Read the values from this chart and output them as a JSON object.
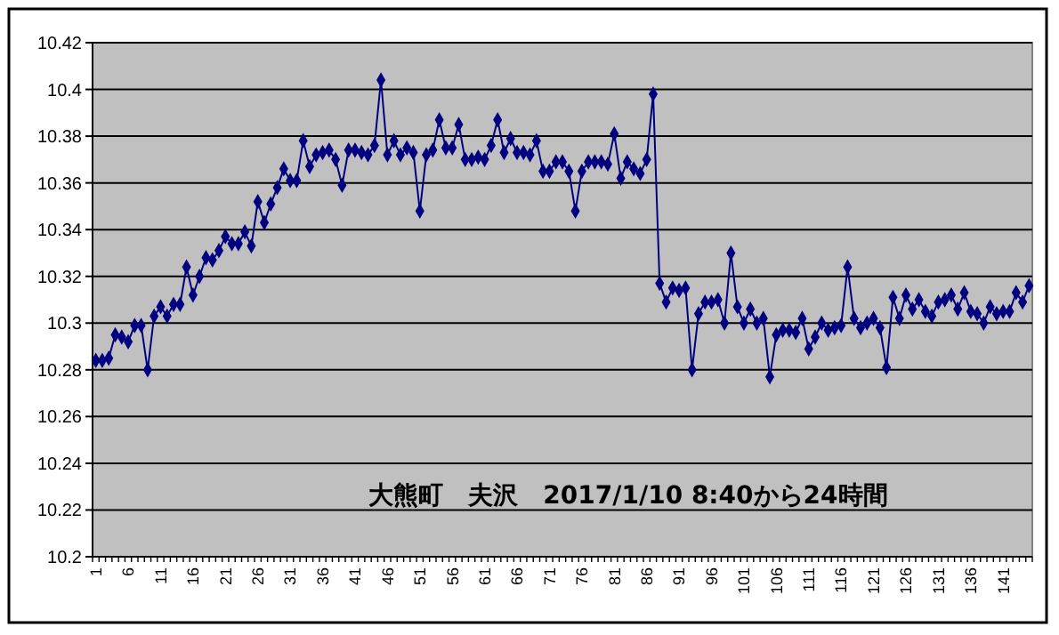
{
  "chart_data": {
    "type": "line",
    "annotations": [
      "大熊町　夫沢　2017/1/10 8:40から24時間"
    ],
    "categories": [
      "1",
      null,
      null,
      null,
      null,
      "6",
      null,
      null,
      null,
      null,
      "11",
      null,
      null,
      null,
      null,
      "16",
      null,
      null,
      null,
      null,
      "21",
      null,
      null,
      null,
      null,
      "26",
      null,
      null,
      null,
      null,
      "31",
      null,
      null,
      null,
      null,
      "36",
      null,
      null,
      null,
      null,
      "41",
      null,
      null,
      null,
      null,
      "46",
      null,
      null,
      null,
      null,
      "51",
      null,
      null,
      null,
      null,
      "56",
      null,
      null,
      null,
      null,
      "61",
      null,
      null,
      null,
      null,
      "66",
      null,
      null,
      null,
      null,
      "71",
      null,
      null,
      null,
      null,
      "76",
      null,
      null,
      null,
      null,
      "81",
      null,
      null,
      null,
      null,
      "86",
      null,
      null,
      null,
      null,
      "91",
      null,
      null,
      null,
      null,
      "96",
      null,
      null,
      null,
      null,
      "101",
      null,
      null,
      null,
      null,
      "106",
      null,
      null,
      null,
      null,
      "111",
      null,
      null,
      null,
      null,
      "116",
      null,
      null,
      null,
      null,
      "121",
      null,
      null,
      null,
      null,
      "126",
      null,
      null,
      null,
      null,
      "131",
      null,
      null,
      null,
      null,
      "136",
      null,
      null,
      null,
      null,
      "141",
      null,
      null,
      null,
      null
    ],
    "series": [
      {
        "color": "#000080",
        "values": [
          10.284,
          10.284,
          10.285,
          10.295,
          10.294,
          10.292,
          10.299,
          10.299,
          10.28,
          10.303,
          10.307,
          10.303,
          10.308,
          10.308,
          10.324,
          10.312,
          10.32,
          10.328,
          10.327,
          10.331,
          10.337,
          10.334,
          10.334,
          10.339,
          10.333,
          10.352,
          10.343,
          10.351,
          10.358,
          10.366,
          10.361,
          10.361,
          10.378,
          10.367,
          10.372,
          10.373,
          10.374,
          10.37,
          10.359,
          10.374,
          10.374,
          10.373,
          10.372,
          10.376,
          10.404,
          10.372,
          10.378,
          10.372,
          10.375,
          10.373,
          10.348,
          10.372,
          10.374,
          10.387,
          10.375,
          10.375,
          10.385,
          10.37,
          10.37,
          10.371,
          10.37,
          10.376,
          10.387,
          10.373,
          10.379,
          10.373,
          10.373,
          10.372,
          10.378,
          10.365,
          10.365,
          10.369,
          10.369,
          10.365,
          10.348,
          10.365,
          10.369,
          10.369,
          10.369,
          10.368,
          10.381,
          10.362,
          10.369,
          10.366,
          10.364,
          10.37,
          10.398,
          10.317,
          10.309,
          10.315,
          10.314,
          10.315,
          10.28,
          10.304,
          10.309,
          10.309,
          10.31,
          10.3,
          10.33,
          10.307,
          10.3,
          10.306,
          10.3,
          10.302,
          10.277,
          10.295,
          10.297,
          10.297,
          10.296,
          10.302,
          10.289,
          10.294,
          10.3,
          10.297,
          10.298,
          10.299,
          10.324,
          10.302,
          10.298,
          10.3,
          10.302,
          10.298,
          10.281,
          10.311,
          10.302,
          10.312,
          10.306,
          10.31,
          10.305,
          10.303,
          10.309,
          10.31,
          10.312,
          10.306,
          10.313,
          10.305,
          10.304,
          10.3,
          10.307,
          10.304,
          10.305,
          10.305,
          10.313,
          10.309,
          10.316
        ]
      }
    ],
    "ylim": [
      10.2,
      10.42
    ],
    "yticks": [
      10.2,
      10.22,
      10.24,
      10.26,
      10.28,
      10.3,
      10.32,
      10.34,
      10.36,
      10.38,
      10.4,
      10.42
    ],
    "grid": "y",
    "marker": "diamond",
    "line_style": "solid"
  }
}
